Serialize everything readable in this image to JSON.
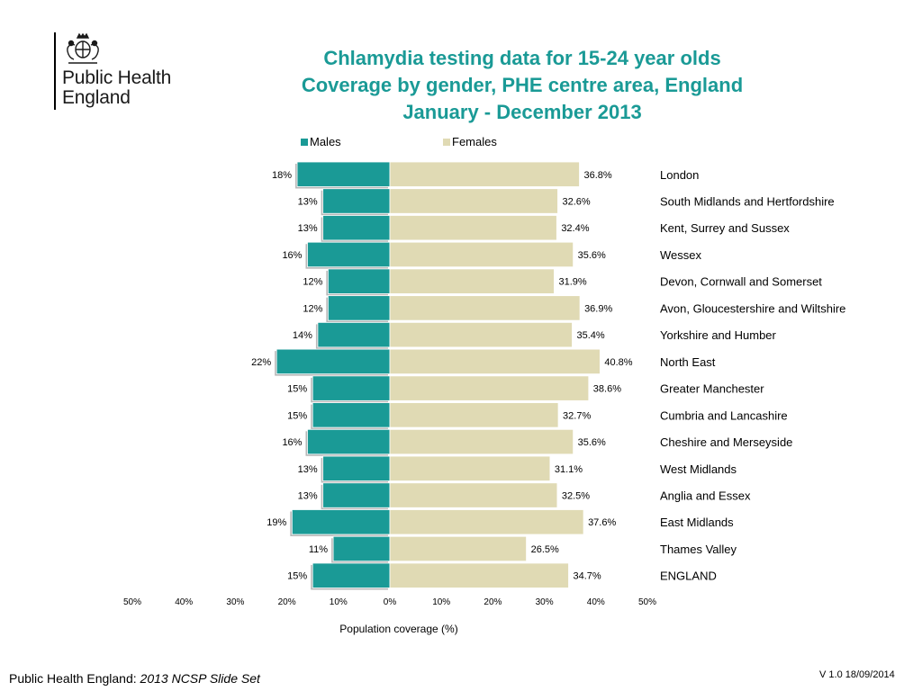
{
  "header": {
    "org_name_line1": "Public Health",
    "org_name_line2": "England",
    "logo_icon": "royal-crest"
  },
  "chart_data": {
    "type": "bar",
    "orientation": "horizontal",
    "layout": "butterfly",
    "title": [
      "Chlamydia testing data for 15-24 year olds",
      "Coverage by gender, PHE centre area, England",
      "January - December  2013"
    ],
    "xlabel": "Population coverage (%)",
    "xlim": [
      -50,
      50
    ],
    "x_ticks": [
      "50%",
      "40%",
      "30%",
      "20%",
      "10%",
      "0%",
      "10%",
      "20%",
      "30%",
      "40%",
      "50%"
    ],
    "x_tick_values": [
      -50,
      -40,
      -30,
      -20,
      -10,
      0,
      10,
      20,
      30,
      40,
      50
    ],
    "legend_position": "top",
    "categories": [
      "London",
      "South Midlands and Hertfordshire",
      "Kent, Surrey and  Sussex",
      "Wessex",
      "Devon, Cornwall and Somerset",
      "Avon, Gloucestershire and Wiltshire",
      "Yorkshire and Humber",
      "North East",
      "Greater Manchester",
      "Cumbria and Lancashire",
      "Cheshire and Merseyside",
      "West Midlands",
      "Anglia and Essex",
      "East Midlands",
      "Thames Valley",
      "ENGLAND"
    ],
    "series": [
      {
        "name": "Males",
        "color": "#1A9A96",
        "values": [
          18,
          13,
          13,
          16,
          12,
          12,
          14,
          22,
          15,
          15,
          16,
          13,
          13,
          19,
          11,
          15
        ],
        "labels": [
          "18%",
          "13%",
          "13%",
          "16%",
          "12%",
          "12%",
          "14%",
          "22%",
          "15%",
          "15%",
          "16%",
          "13%",
          "13%",
          "19%",
          "11%",
          "15%"
        ]
      },
      {
        "name": "Females",
        "color": "#E0DAB4",
        "values": [
          36.8,
          32.6,
          32.4,
          35.6,
          31.9,
          36.9,
          35.4,
          40.8,
          38.6,
          32.7,
          35.6,
          31.1,
          32.5,
          37.6,
          26.5,
          34.7
        ],
        "labels": [
          "36.8%",
          "32.6%",
          "32.4%",
          "35.6%",
          "31.9%",
          "36.9%",
          "35.4%",
          "40.8%",
          "38.6%",
          "32.7%",
          "35.6%",
          "31.1%",
          "32.5%",
          "37.6%",
          "26.5%",
          "34.7%"
        ]
      }
    ]
  },
  "footer": {
    "source_prefix": "Public Health England: ",
    "source_title": "2013 NCSP Slide Set",
    "version": "V 1.0  18/09/2014"
  }
}
